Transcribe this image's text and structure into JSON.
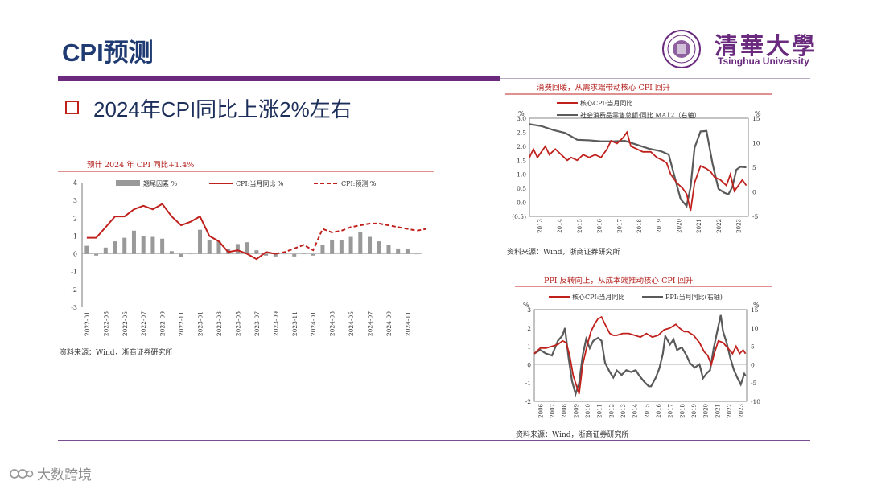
{
  "slide": {
    "title": "CPI预测",
    "bullet": "2024年CPI同比上涨2%左右",
    "logo_cn": "清華大學",
    "logo_en": "Tsinghua University",
    "watermark": "大数跨境"
  },
  "colors": {
    "red": "#c0211d",
    "gray": "#999999",
    "darkgray": "#5a5a5a",
    "purple": "#6b2a7d",
    "title": "#1f3b72"
  },
  "chart_data": [
    {
      "type": "bar",
      "title": "预计 2024 年 CPI 同比+1.4%",
      "source": "资料来源：Wind，浙商证券研究所",
      "legend": [
        "翘尾因素 %",
        "CPI:当月同比 %",
        "CPI:预测 %"
      ],
      "ylim": [
        -3,
        4
      ],
      "yticks": [
        "4",
        "3",
        "2",
        "1",
        "0",
        "-1",
        "-2",
        "-3"
      ],
      "x_ticks": [
        "2022-01",
        "2022-03",
        "2022-05",
        "2022-07",
        "2022-09",
        "2022-11",
        "2023-01",
        "2023-03",
        "2023-05",
        "2023-07",
        "2023-09",
        "2023-11",
        "2024-01",
        "2024-03",
        "2024-05",
        "2024-07",
        "2024-09",
        "2024-11"
      ],
      "months": 36,
      "carryover": [
        0.45,
        -0.1,
        0.35,
        0.7,
        0.9,
        1.3,
        1.0,
        0.95,
        0.85,
        0.15,
        -0.2,
        0.0,
        1.35,
        0.75,
        0.7,
        0.25,
        0.55,
        0.65,
        0.2,
        -0.1,
        -0.15,
        0.0,
        -0.15,
        0.0,
        -0.1,
        0.5,
        0.75,
        0.75,
        0.95,
        1.2,
        0.95,
        0.7,
        0.5,
        0.3,
        0.25,
        0.0
      ],
      "cpi_actual": [
        0.9,
        0.9,
        1.5,
        2.1,
        2.1,
        2.5,
        2.7,
        2.5,
        2.8,
        2.1,
        1.6,
        1.8,
        2.1,
        1.0,
        0.7,
        0.1,
        0.2,
        0.0,
        -0.3,
        0.1,
        0.0
      ],
      "cpi_forecast": [
        0.0,
        0.1,
        0.3,
        0.5,
        0.2,
        1.4,
        1.2,
        1.3,
        1.5,
        1.6,
        1.7,
        1.7,
        1.6,
        1.5,
        1.4,
        1.3,
        1.4
      ]
    },
    {
      "type": "line",
      "title": "消费回暖，从需求端带动核心 CPI 回升",
      "source": "资料来源：Wind，浙商证券研究所",
      "legend": [
        "核心CPI:当月同比",
        "社会消费品零售总额:同比 MA12（右轴）"
      ],
      "unit_left": "%",
      "unit_right": "%",
      "ylim_left": [
        -0.5,
        3.0
      ],
      "ylim_right": [
        -5,
        15
      ],
      "yticks_left": [
        "3.0",
        "2.5",
        "2.0",
        "1.5",
        "1.0",
        "0.5",
        "0.0",
        "(0.5)"
      ],
      "yticks_right": [
        "15",
        "10",
        "5",
        "0",
        "-5"
      ],
      "x_ticks": [
        "2013",
        "2014",
        "2015",
        "2016",
        "2017",
        "2018",
        "2019",
        "2020",
        "2021",
        "2022",
        "2023"
      ],
      "x_range": [
        2013,
        2024
      ],
      "core_cpi": [
        [
          2013.0,
          1.6
        ],
        [
          2013.2,
          1.9
        ],
        [
          2013.4,
          1.6
        ],
        [
          2013.6,
          1.8
        ],
        [
          2013.8,
          2.0
        ],
        [
          2014.0,
          1.7
        ],
        [
          2014.3,
          1.9
        ],
        [
          2014.6,
          1.7
        ],
        [
          2014.9,
          1.5
        ],
        [
          2015.1,
          1.6
        ],
        [
          2015.4,
          1.5
        ],
        [
          2015.7,
          1.7
        ],
        [
          2016.0,
          1.6
        ],
        [
          2016.3,
          1.7
        ],
        [
          2016.6,
          1.6
        ],
        [
          2016.9,
          1.9
        ],
        [
          2017.1,
          2.2
        ],
        [
          2017.4,
          2.1
        ],
        [
          2017.7,
          2.3
        ],
        [
          2017.9,
          2.5
        ],
        [
          2018.1,
          2.0
        ],
        [
          2018.4,
          1.9
        ],
        [
          2018.7,
          1.8
        ],
        [
          2018.9,
          1.8
        ],
        [
          2019.1,
          1.8
        ],
        [
          2019.4,
          1.6
        ],
        [
          2019.7,
          1.5
        ],
        [
          2019.9,
          1.4
        ],
        [
          2020.1,
          1.0
        ],
        [
          2020.4,
          0.7
        ],
        [
          2020.7,
          0.5
        ],
        [
          2020.9,
          0.3
        ],
        [
          2021.1,
          -0.3
        ],
        [
          2021.3,
          0.7
        ],
        [
          2021.6,
          1.3
        ],
        [
          2021.9,
          1.2
        ],
        [
          2022.1,
          1.1
        ],
        [
          2022.3,
          0.9
        ],
        [
          2022.6,
          0.8
        ],
        [
          2022.9,
          0.6
        ],
        [
          2023.1,
          1.0
        ],
        [
          2023.3,
          0.4
        ],
        [
          2023.5,
          0.6
        ],
        [
          2023.7,
          0.8
        ],
        [
          2023.9,
          0.6
        ]
      ],
      "retail_ma12": [
        [
          2013.0,
          13.8
        ],
        [
          2013.6,
          13.4
        ],
        [
          2014.2,
          12.6
        ],
        [
          2014.8,
          12.0
        ],
        [
          2015.4,
          10.6
        ],
        [
          2016.0,
          10.5
        ],
        [
          2016.6,
          10.3
        ],
        [
          2017.2,
          10.3
        ],
        [
          2017.8,
          10.4
        ],
        [
          2018.4,
          9.6
        ],
        [
          2019.0,
          8.8
        ],
        [
          2019.6,
          8.3
        ],
        [
          2020.0,
          7.6
        ],
        [
          2020.3,
          3.0
        ],
        [
          2020.6,
          -1.5
        ],
        [
          2020.9,
          -2.9
        ],
        [
          2021.1,
          1.0
        ],
        [
          2021.3,
          9.0
        ],
        [
          2021.6,
          12.3
        ],
        [
          2021.9,
          12.4
        ],
        [
          2022.2,
          5.8
        ],
        [
          2022.5,
          0.6
        ],
        [
          2022.8,
          -0.2
        ],
        [
          2023.0,
          -0.5
        ],
        [
          2023.2,
          1.0
        ],
        [
          2023.4,
          4.5
        ],
        [
          2023.6,
          5.1
        ],
        [
          2023.9,
          5.0
        ]
      ]
    },
    {
      "type": "line",
      "title": "PPI 反转向上，从成本端推动核心 CPI 回升",
      "source": "资料来源：Wind，浙商证券研究所",
      "legend": [
        "核心CPI:当月同比",
        "PPI:当月同比(右轴)"
      ],
      "unit_left": "%",
      "unit_right": "%",
      "ylim_left": [
        -2,
        3
      ],
      "ylim_right": [
        -10,
        15
      ],
      "yticks_left": [
        "3",
        "2",
        "1",
        "0",
        "-1",
        "-2"
      ],
      "yticks_right": [
        "15",
        "10",
        "5",
        "0",
        "-5",
        "-10"
      ],
      "x_ticks": [
        "2006",
        "2007",
        "2008",
        "2009",
        "2010",
        "2011",
        "2012",
        "2013",
        "2014",
        "2015",
        "2016",
        "2017",
        "2018",
        "2019",
        "2020",
        "2021",
        "2022",
        "2023"
      ],
      "x_range": [
        2006,
        2024
      ],
      "core_cpi": [
        [
          2006.0,
          0.6
        ],
        [
          2006.5,
          0.9
        ],
        [
          2007.0,
          0.9
        ],
        [
          2007.5,
          1.0
        ],
        [
          2008.0,
          1.1
        ],
        [
          2008.4,
          1.3
        ],
        [
          2008.7,
          1.2
        ],
        [
          2009.0,
          0.5
        ],
        [
          2009.3,
          -0.6
        ],
        [
          2009.6,
          -1.2
        ],
        [
          2009.8,
          -1.6
        ],
        [
          2010.1,
          0.0
        ],
        [
          2010.5,
          1.1
        ],
        [
          2010.8,
          1.8
        ],
        [
          2011.1,
          2.2
        ],
        [
          2011.4,
          2.5
        ],
        [
          2011.7,
          2.6
        ],
        [
          2012.0,
          2.2
        ],
        [
          2012.4,
          1.7
        ],
        [
          2012.7,
          1.6
        ],
        [
          2013.0,
          1.6
        ],
        [
          2013.5,
          1.7
        ],
        [
          2014.0,
          1.7
        ],
        [
          2014.5,
          1.6
        ],
        [
          2015.0,
          1.5
        ],
        [
          2015.5,
          1.7
        ],
        [
          2016.0,
          1.5
        ],
        [
          2016.5,
          1.6
        ],
        [
          2017.0,
          1.9
        ],
        [
          2017.5,
          2.0
        ],
        [
          2018.0,
          2.2
        ],
        [
          2018.3,
          2.0
        ],
        [
          2018.7,
          1.8
        ],
        [
          2019.0,
          1.8
        ],
        [
          2019.5,
          1.6
        ],
        [
          2020.0,
          1.2
        ],
        [
          2020.4,
          0.7
        ],
        [
          2020.7,
          0.5
        ],
        [
          2021.0,
          0.0
        ],
        [
          2021.3,
          0.7
        ],
        [
          2021.6,
          1.3
        ],
        [
          2022.0,
          1.2
        ],
        [
          2022.4,
          0.9
        ],
        [
          2022.8,
          0.6
        ],
        [
          2023.1,
          1.0
        ],
        [
          2023.4,
          0.6
        ],
        [
          2023.7,
          0.8
        ],
        [
          2023.9,
          0.6
        ]
      ],
      "ppi": [
        [
          2006.0,
          3.0
        ],
        [
          2006.5,
          4.0
        ],
        [
          2007.0,
          3.0
        ],
        [
          2007.5,
          2.5
        ],
        [
          2008.0,
          6.5
        ],
        [
          2008.4,
          8.0
        ],
        [
          2008.6,
          10.0
        ],
        [
          2008.9,
          2.0
        ],
        [
          2009.2,
          -4.5
        ],
        [
          2009.5,
          -8.0
        ],
        [
          2009.8,
          -5.0
        ],
        [
          2010.1,
          2.5
        ],
        [
          2010.4,
          7.0
        ],
        [
          2010.7,
          4.5
        ],
        [
          2011.0,
          6.5
        ],
        [
          2011.4,
          7.3
        ],
        [
          2011.7,
          6.5
        ],
        [
          2012.0,
          0.5
        ],
        [
          2012.4,
          -2.0
        ],
        [
          2012.7,
          -3.5
        ],
        [
          2013.0,
          -1.6
        ],
        [
          2013.4,
          -2.8
        ],
        [
          2013.8,
          -1.5
        ],
        [
          2014.2,
          -2.0
        ],
        [
          2014.6,
          -1.5
        ],
        [
          2014.9,
          -3.0
        ],
        [
          2015.3,
          -4.6
        ],
        [
          2015.7,
          -5.9
        ],
        [
          2015.9,
          -5.9
        ],
        [
          2016.3,
          -3.5
        ],
        [
          2016.6,
          -1.0
        ],
        [
          2016.9,
          3.0
        ],
        [
          2017.1,
          7.8
        ],
        [
          2017.5,
          5.5
        ],
        [
          2017.8,
          6.9
        ],
        [
          2018.1,
          4.0
        ],
        [
          2018.5,
          4.7
        ],
        [
          2018.9,
          2.5
        ],
        [
          2019.2,
          0.4
        ],
        [
          2019.6,
          -0.8
        ],
        [
          2020.0,
          0.1
        ],
        [
          2020.3,
          -3.7
        ],
        [
          2020.6,
          -2.4
        ],
        [
          2020.9,
          -1.5
        ],
        [
          2021.2,
          4.4
        ],
        [
          2021.5,
          9.0
        ],
        [
          2021.8,
          13.5
        ],
        [
          2022.0,
          9.0
        ],
        [
          2022.3,
          6.0
        ],
        [
          2022.6,
          2.0
        ],
        [
          2022.9,
          -1.3
        ],
        [
          2023.2,
          -3.5
        ],
        [
          2023.5,
          -5.4
        ],
        [
          2023.8,
          -2.5
        ],
        [
          2023.9,
          -3.0
        ]
      ]
    }
  ]
}
